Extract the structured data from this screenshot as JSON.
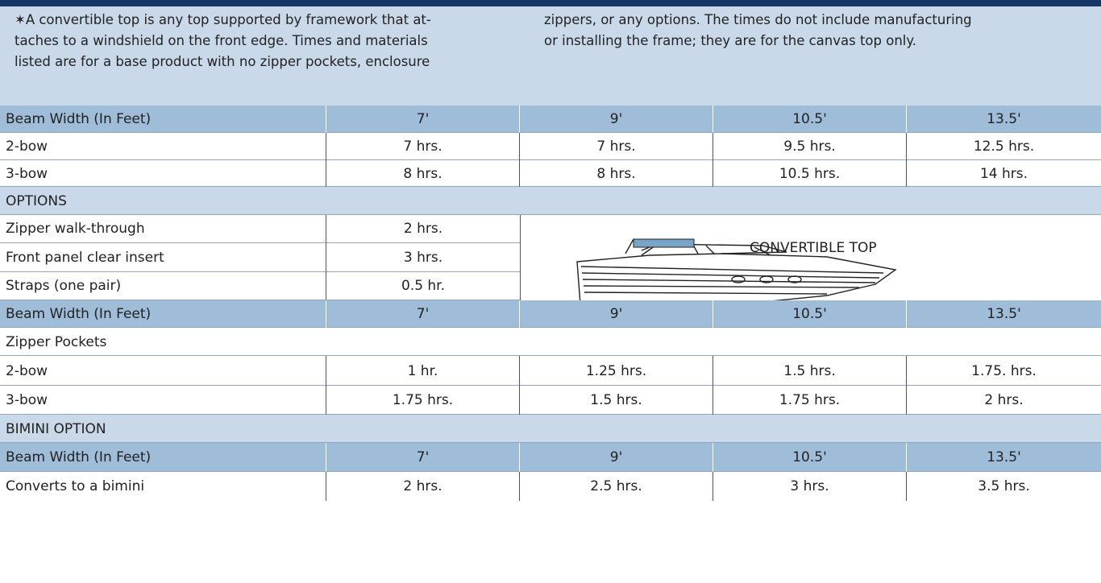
{
  "note": {
    "left": [
      "✶A convertible top is any top supported by framework that at-",
      "taches to a windshield on the front edge. Times and materials",
      "listed are for a base product with no zipper pockets, enclosure"
    ],
    "right": [
      "zippers, or any options. The times do not include manufacturing",
      "or installing the frame; they are for the canvas top only."
    ]
  },
  "image_caption": "CONVERTIBLE TOP",
  "rows": [
    {
      "kind": "header",
      "cells": [
        "Beam Width (In Feet)",
        "7'",
        "9'",
        "10.5'",
        "13.5'"
      ]
    },
    {
      "kind": "data",
      "cells": [
        "2-bow",
        "7 hrs.",
        "7 hrs.",
        "9.5 hrs.",
        "12.5 hrs."
      ]
    },
    {
      "kind": "data",
      "cells": [
        "3-bow",
        "8 hrs.",
        "8 hrs.",
        "10.5 hrs.",
        "14 hrs."
      ]
    },
    {
      "kind": "section",
      "cells": [
        "OPTIONS"
      ]
    },
    {
      "kind": "option",
      "cells": [
        "Zipper walk-through",
        "2 hrs."
      ]
    },
    {
      "kind": "option",
      "cells": [
        "Front panel clear insert",
        "3 hrs."
      ]
    },
    {
      "kind": "option",
      "cells": [
        "Straps (one pair)",
        "0.5 hr."
      ]
    },
    {
      "kind": "header",
      "cells": [
        "Beam Width (In Feet)",
        "7'",
        "9'",
        "10.5'",
        "13.5'"
      ]
    },
    {
      "kind": "subsection",
      "cells": [
        "Zipper Pockets"
      ]
    },
    {
      "kind": "data",
      "cells": [
        "2-bow",
        "1 hr.",
        "1.25 hrs.",
        "1.5 hrs.",
        "1.75. hrs."
      ]
    },
    {
      "kind": "data",
      "cells": [
        "3-bow",
        "1.75 hrs.",
        "1.5 hrs.",
        "1.75 hrs.",
        "2 hrs."
      ]
    },
    {
      "kind": "section",
      "cells": [
        "BIMINI OPTION"
      ]
    },
    {
      "kind": "header",
      "cells": [
        "Beam Width (In Feet)",
        "7'",
        "9'",
        "10.5'",
        "13.5'"
      ]
    },
    {
      "kind": "data",
      "cells": [
        "Converts to a bimini",
        "2 hrs.",
        "2.5 hrs.",
        "3 hrs.",
        "3.5 hrs."
      ]
    }
  ]
}
